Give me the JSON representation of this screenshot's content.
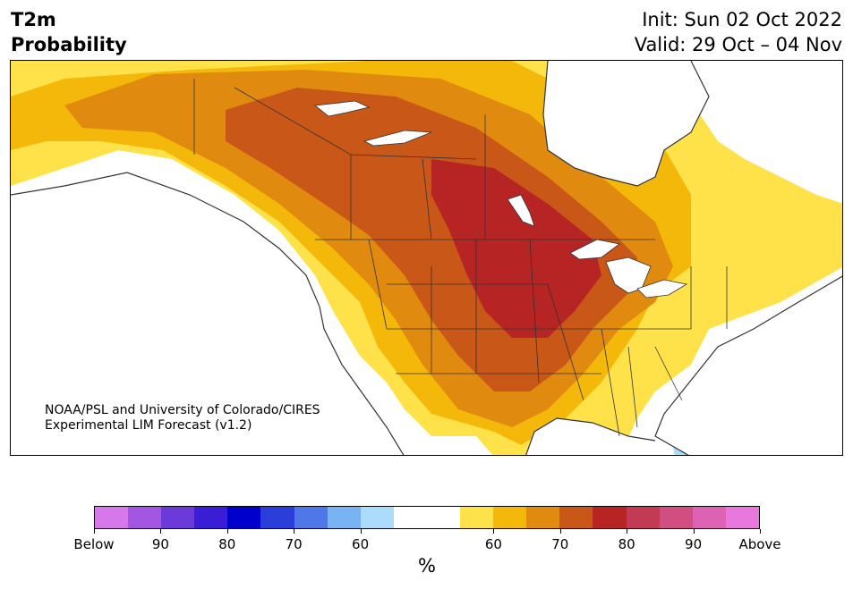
{
  "header": {
    "title_line1": "T2m",
    "title_line2": "Probability",
    "init_label": "Init: Sun 02 Oct 2022",
    "valid_label": "Valid: 29 Oct – 04 Nov"
  },
  "credit": {
    "line1": "NOAA/PSL and University of Colorado/CIRES",
    "line2": "Experimental LIM Forecast (v1.2)"
  },
  "colorbar": {
    "colors": [
      "#d677ea",
      "#a256e2",
      "#6c3ad8",
      "#3a1ed6",
      "#0000cc",
      "#2a3fd9",
      "#5077e8",
      "#78b3f4",
      "#acdcfb",
      "#ffffff",
      "#ffffff",
      "#ffe24a",
      "#f3b80a",
      "#e08b10",
      "#c95718",
      "#b62524",
      "#c33a54",
      "#d04f80",
      "#dd62b4",
      "#e878dd"
    ],
    "tick_labels": [
      "Below",
      "90",
      "80",
      "70",
      "60",
      "60",
      "70",
      "80",
      "90",
      "Above"
    ],
    "unit": "%"
  },
  "map_colors": {
    "p55": "#ffe24a",
    "p60": "#f3b80a",
    "p65": "#e08b10",
    "p70": "#c95718",
    "p75": "#b62524",
    "below": "#acdcfb",
    "ocean": "#ffffff",
    "coast": "#333333"
  }
}
